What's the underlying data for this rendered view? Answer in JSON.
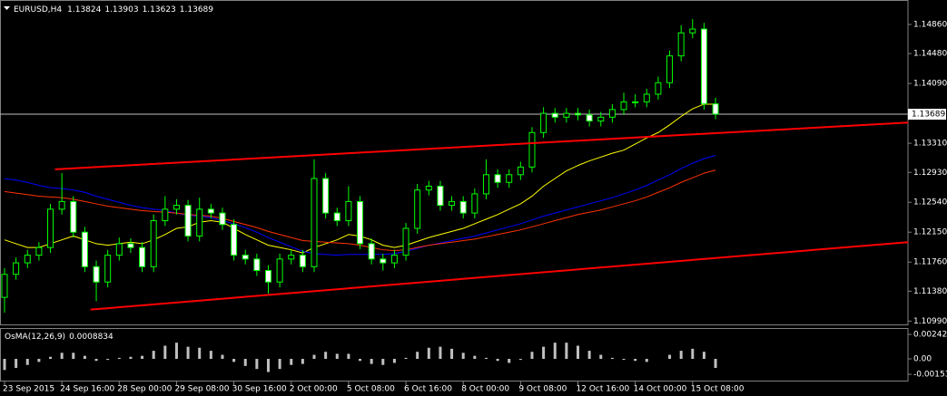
{
  "chart_data": [
    {
      "type": "candlestick",
      "title": "EURUSD,H4",
      "categories": [
        "23 Sep 2015",
        null,
        null,
        null,
        null,
        "24 Sep 16:00",
        null,
        null,
        null,
        null,
        "28 Sep 00:00",
        null,
        null,
        null,
        null,
        "29 Sep 08:00",
        null,
        null,
        null,
        null,
        "30 Sep 16:00",
        null,
        null,
        null,
        null,
        "2 Oct 00:00",
        null,
        null,
        null,
        null,
        "5 Oct 08:00",
        null,
        null,
        null,
        null,
        "6 Oct 16:00",
        null,
        null,
        null,
        null,
        "8 Oct 00:00",
        null,
        null,
        null,
        null,
        "9 Oct 08:00",
        null,
        null,
        null,
        null,
        "12 Oct 16:00",
        null,
        null,
        null,
        null,
        "14 Oct 00:00",
        null,
        null,
        null,
        null,
        "15 Oct 08:00",
        null,
        null
      ],
      "open": [
        1.113,
        1.116,
        1.1175,
        1.1185,
        1.1195,
        1.1245,
        1.1255,
        1.1215,
        1.117,
        1.115,
        1.1185,
        1.12,
        1.1195,
        1.117,
        1.123,
        1.1245,
        1.125,
        1.121,
        1.1245,
        1.124,
        1.1225,
        1.1185,
        1.118,
        1.1165,
        1.115,
        1.118,
        1.1185,
        1.117,
        1.1285,
        1.124,
        1.123,
        1.1255,
        1.12,
        1.118,
        1.1175,
        1.1185,
        1.122,
        1.127,
        1.1275,
        1.125,
        1.1255,
        1.124,
        1.1265,
        1.129,
        1.128,
        1.129,
        1.13,
        1.1345,
        1.137,
        1.1365,
        1.137,
        1.1368,
        1.136,
        1.1365,
        1.1375,
        1.1385,
        1.1385,
        1.1395,
        1.141,
        1.1445,
        1.1475,
        1.148,
        1.13824
      ],
      "high": [
        1.1168,
        1.1182,
        1.1192,
        1.1202,
        1.1252,
        1.1292,
        1.1262,
        1.1222,
        1.1178,
        1.1192,
        1.1208,
        1.1207,
        1.1202,
        1.1238,
        1.1262,
        1.1258,
        1.1257,
        1.126,
        1.1252,
        1.1247,
        1.1232,
        1.1192,
        1.1187,
        1.1172,
        1.1187,
        1.1192,
        1.1192,
        1.131,
        1.1292,
        1.1247,
        1.1275,
        1.1262,
        1.1207,
        1.1187,
        1.1192,
        1.1227,
        1.1278,
        1.1282,
        1.1282,
        1.1262,
        1.1262,
        1.1272,
        1.131,
        1.1297,
        1.1297,
        1.1307,
        1.1352,
        1.1378,
        1.1377,
        1.1377,
        1.1377,
        1.1375,
        1.1372,
        1.1382,
        1.1397,
        1.1395,
        1.1402,
        1.1418,
        1.1452,
        1.1485,
        1.1493,
        1.1488,
        1.13903
      ],
      "low": [
        1.111,
        1.1153,
        1.1168,
        1.1178,
        1.1188,
        1.1238,
        1.1208,
        1.1163,
        1.1125,
        1.1143,
        1.1178,
        1.1188,
        1.1163,
        1.1163,
        1.1223,
        1.1238,
        1.1203,
        1.1203,
        1.1233,
        1.1218,
        1.1178,
        1.1173,
        1.1158,
        1.1135,
        1.1143,
        1.1173,
        1.1163,
        1.1163,
        1.1233,
        1.1223,
        1.1223,
        1.1193,
        1.1173,
        1.1165,
        1.1168,
        1.1178,
        1.1213,
        1.1263,
        1.1243,
        1.1243,
        1.1233,
        1.1233,
        1.1258,
        1.1273,
        1.1273,
        1.1283,
        1.1293,
        1.1338,
        1.1358,
        1.1358,
        1.1361,
        1.1353,
        1.1353,
        1.1358,
        1.1368,
        1.1378,
        1.1378,
        1.1388,
        1.1403,
        1.1438,
        1.1468,
        1.1375,
        1.13623
      ],
      "close": [
        1.116,
        1.1175,
        1.1185,
        1.1195,
        1.1245,
        1.1255,
        1.1215,
        1.117,
        1.115,
        1.1185,
        1.12,
        1.1195,
        1.117,
        1.123,
        1.1245,
        1.125,
        1.121,
        1.1245,
        1.124,
        1.1225,
        1.1185,
        1.118,
        1.1165,
        1.115,
        1.118,
        1.1185,
        1.117,
        1.1285,
        1.124,
        1.123,
        1.1255,
        1.12,
        1.118,
        1.1175,
        1.1185,
        1.122,
        1.127,
        1.1275,
        1.125,
        1.1255,
        1.124,
        1.1265,
        1.129,
        1.128,
        1.129,
        1.13,
        1.1345,
        1.137,
        1.1365,
        1.137,
        1.1368,
        1.136,
        1.1365,
        1.1375,
        1.1385,
        1.1385,
        1.1395,
        1.141,
        1.1445,
        1.1475,
        1.148,
        1.13824,
        1.13689
      ],
      "bull_color": "#000000",
      "bear_color": "#ffffff",
      "wick_color": "#00ff00",
      "series": [
        {
          "color": "#ffff00",
          "values": [
            1.1205,
            1.12,
            1.1195,
            1.1195,
            1.12,
            1.1205,
            1.121,
            1.1205,
            1.12,
            1.1198,
            1.12,
            1.1202,
            1.12,
            1.1205,
            1.1212,
            1.122,
            1.1222,
            1.1228,
            1.123,
            1.1228,
            1.122,
            1.1212,
            1.1205,
            1.1198,
            1.1195,
            1.1192,
            1.1188,
            1.1195,
            1.12,
            1.1205,
            1.1212,
            1.121,
            1.1205,
            1.1198,
            1.1195,
            1.1198,
            1.1203,
            1.1208,
            1.1212,
            1.1216,
            1.122,
            1.1226,
            1.1232,
            1.1238,
            1.1245,
            1.1252,
            1.1262,
            1.1275,
            1.1285,
            1.1295,
            1.1302,
            1.1308,
            1.1313,
            1.1318,
            1.1322,
            1.133,
            1.1338,
            1.1345,
            1.1355,
            1.1366,
            1.1376,
            1.1382,
            1.1382
          ]
        },
        {
          "color": "#0000ff",
          "values": [
            1.1285,
            1.1283,
            1.128,
            1.1276,
            1.1273,
            1.1272,
            1.127,
            1.1267,
            1.1262,
            1.1258,
            1.1254,
            1.125,
            1.1247,
            1.1245,
            1.1243,
            1.124,
            1.1237,
            1.1236,
            1.1234,
            1.123,
            1.1226,
            1.1221,
            1.1215,
            1.1208,
            1.1202,
            1.1196,
            1.119,
            1.1187,
            1.1186,
            1.1185,
            1.1186,
            1.1186,
            1.1186,
            1.1186,
            1.1187,
            1.119,
            1.1194,
            1.1198,
            1.1201,
            1.1204,
            1.1207,
            1.121,
            1.1214,
            1.1218,
            1.1222,
            1.1226,
            1.1231,
            1.1236,
            1.124,
            1.1244,
            1.1248,
            1.1252,
            1.1256,
            1.126,
            1.1265,
            1.127,
            1.1276,
            1.1283,
            1.129,
            1.1298,
            1.1305,
            1.1311,
            1.1315
          ]
        },
        {
          "color": "#ff3300",
          "values": [
            1.1268,
            1.1266,
            1.1264,
            1.1262,
            1.1261,
            1.126,
            1.1258,
            1.1255,
            1.1252,
            1.1249,
            1.1247,
            1.1245,
            1.1243,
            1.1242,
            1.1241,
            1.124,
            1.1238,
            1.1237,
            1.1236,
            1.1233,
            1.1229,
            1.1225,
            1.1221,
            1.1216,
            1.1212,
            1.1208,
            1.1204,
            1.1203,
            1.1202,
            1.1201,
            1.12,
            1.1198,
            1.1195,
            1.1192,
            1.1191,
            1.1192,
            1.1195,
            1.1198,
            1.12,
            1.1202,
            1.1204,
            1.1206,
            1.1209,
            1.1212,
            1.1215,
            1.1218,
            1.1222,
            1.1226,
            1.123,
            1.1234,
            1.1238,
            1.1241,
            1.1244,
            1.1248,
            1.1252,
            1.1256,
            1.1261,
            1.1267,
            1.1273,
            1.128,
            1.1286,
            1.1292,
            1.1296
          ]
        }
      ],
      "trendlines": [
        {
          "color": "#ff0000",
          "from": [
            4.4,
            1.1297
          ],
          "to": [
            78.8,
            1.1358
          ]
        },
        {
          "color": "#ff0000",
          "from": [
            7.5,
            1.1114
          ],
          "to": [
            78.8,
            1.1202
          ]
        }
      ],
      "price_line_color": "#c0c0c0",
      "ylim": [
        1.10947,
        1.15179
      ],
      "yticks": [
        {
          "value": 1.1486,
          "label": "1.14860"
        },
        {
          "value": 1.1448,
          "label": "1.14480"
        },
        {
          "value": 1.1409,
          "label": "1.14090"
        },
        {
          "value": 1.1331,
          "label": "1.13310"
        },
        {
          "value": 1.1293,
          "label": "1.12930"
        },
        {
          "value": 1.1254,
          "label": "1.12540"
        },
        {
          "value": 1.1215,
          "label": "1.12150"
        },
        {
          "value": 1.1176,
          "label": "1.11760"
        },
        {
          "value": 1.1138,
          "label": "1.11380"
        },
        {
          "value": 1.1099,
          "label": "1.10990"
        }
      ]
    },
    {
      "type": "bar",
      "title": "OsMA(12,26,9)",
      "value": 0.0008834,
      "color": "#c0c0c0",
      "values": [
        -0.0011,
        -0.0009,
        -0.0006,
        -0.0003,
        0.0002,
        0.0006,
        0.0006,
        0.0003,
        -0.0002,
        -0.0001,
        0.0001,
        0.0002,
        0.0003,
        0.0008,
        0.0013,
        0.0016,
        0.0012,
        0.0011,
        0.0008,
        0.0004,
        -0.0003,
        -0.0007,
        -0.001,
        -0.0013,
        -0.001,
        -0.0006,
        -0.0005,
        0.0004,
        0.0007,
        0.0005,
        0.0005,
        -0.0002,
        -0.0005,
        -0.0006,
        -0.0004,
        0.0001,
        0.0007,
        0.0011,
        0.0012,
        0.001,
        0.0006,
        0.0003,
        0.0001,
        -0.0002,
        -0.0004,
        -0.0001,
        0.0007,
        0.0012,
        0.0016,
        0.0016,
        0.0013,
        0.0008,
        0.0004,
        0.0001,
        -0.0001,
        -0.0002,
        -0.0003,
        0,
        0.0004,
        0.0008,
        0.001,
        0.0007,
        -0.0009
      ],
      "ylim": [
        -0.00224,
        0.00305
      ],
      "yticks": [
        {
          "value": 0.00242,
          "label": "0.002420"
        },
        {
          "value": 0,
          "label": "0.00"
        },
        {
          "value": -0.00153,
          "label": "-0.001530"
        }
      ]
    }
  ]
}
